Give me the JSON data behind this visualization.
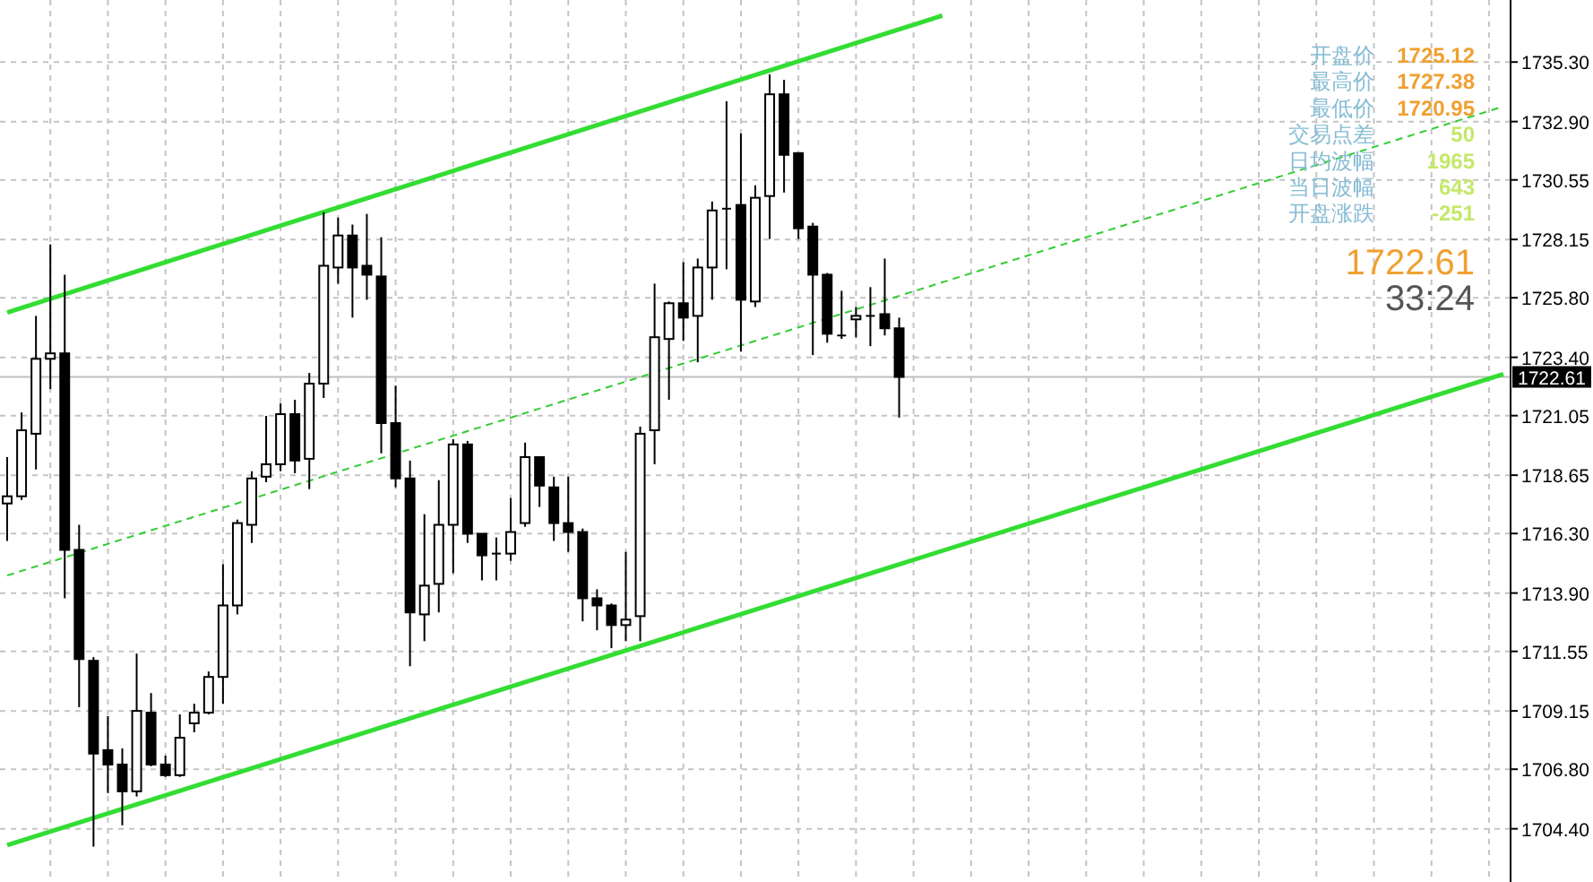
{
  "chart_data": {
    "type": "candlestick",
    "categories": [
      null,
      null,
      null,
      null,
      null,
      null,
      null,
      null,
      null,
      null,
      null,
      null,
      null,
      null,
      null,
      null,
      null,
      null,
      null,
      null,
      null,
      null,
      null,
      null,
      null,
      null,
      null,
      null,
      null,
      null,
      null,
      null,
      null,
      null,
      null,
      null,
      null,
      null,
      null,
      null,
      null,
      null,
      null,
      null,
      null,
      null,
      null,
      null,
      null,
      null,
      null,
      null,
      null,
      null,
      null,
      null,
      null,
      null,
      null,
      null,
      null,
      null,
      null,
      null,
      null,
      null,
      null,
      null,
      null,
      null,
      null,
      null,
      null,
      null,
      null,
      null,
      null,
      null,
      null,
      null,
      null,
      null,
      null,
      null,
      null,
      null,
      null,
      null,
      null,
      null,
      null,
      null,
      null,
      null,
      null,
      null,
      null,
      null,
      null,
      null,
      null,
      null,
      null,
      null,
      null
    ],
    "ohlc": [
      [
        1717.51,
        1719.38,
        1716.0,
        1717.8
      ],
      [
        1717.8,
        1721.18,
        1717.65,
        1720.46
      ],
      [
        1720.32,
        1725.07,
        1718.88,
        1723.34
      ],
      [
        1723.34,
        1727.95,
        1722.12,
        1723.56
      ],
      [
        1723.56,
        1726.73,
        1713.69,
        1715.64
      ],
      [
        1715.64,
        1716.65,
        1709.3,
        1711.24
      ],
      [
        1711.17,
        1711.32,
        1703.68,
        1707.43
      ],
      [
        1707.57,
        1708.94,
        1705.84,
        1706.99
      ],
      [
        1706.99,
        1707.64,
        1704.54,
        1705.91
      ],
      [
        1705.91,
        1711.46,
        1705.7,
        1709.15
      ],
      [
        1709.08,
        1709.87,
        1706.92,
        1706.99
      ],
      [
        1706.99,
        1707.35,
        1706.49,
        1706.56
      ],
      [
        1706.56,
        1709.01,
        1706.49,
        1708.07
      ],
      [
        1708.65,
        1709.44,
        1708.29,
        1709.08
      ],
      [
        1709.08,
        1710.74,
        1709.01,
        1710.52
      ],
      [
        1710.52,
        1715.06,
        1709.44,
        1713.4
      ],
      [
        1713.4,
        1716.86,
        1713.04,
        1716.72
      ],
      [
        1716.65,
        1718.81,
        1715.92,
        1718.52
      ],
      [
        1718.59,
        1721.04,
        1718.37,
        1719.09
      ],
      [
        1719.09,
        1721.54,
        1718.81,
        1721.11
      ],
      [
        1721.11,
        1721.69,
        1718.73,
        1719.24
      ],
      [
        1719.31,
        1722.77,
        1718.09,
        1722.34
      ],
      [
        1722.34,
        1729.25,
        1721.76,
        1727.09
      ],
      [
        1727.02,
        1729.03,
        1726.37,
        1728.31
      ],
      [
        1728.31,
        1728.75,
        1725.0,
        1727.02
      ],
      [
        1727.09,
        1729.18,
        1725.72,
        1726.73
      ],
      [
        1726.66,
        1728.24,
        1719.53,
        1720.75
      ],
      [
        1720.75,
        1722.26,
        1718.16,
        1718.52
      ],
      [
        1718.52,
        1719.24,
        1710.95,
        1713.12
      ],
      [
        1713.04,
        1717.08,
        1711.96,
        1714.2
      ],
      [
        1714.27,
        1718.45,
        1713.12,
        1716.65
      ],
      [
        1716.65,
        1720.1,
        1714.7,
        1719.89
      ],
      [
        1719.89,
        1720.03,
        1715.92,
        1716.29
      ],
      [
        1716.29,
        1716.29,
        1714.41,
        1715.42
      ],
      [
        1715.49,
        1716.14,
        1714.41,
        1715.49
      ],
      [
        1715.49,
        1717.73,
        1715.2,
        1716.36
      ],
      [
        1716.72,
        1719.96,
        1716.57,
        1719.38
      ],
      [
        1719.38,
        1719.38,
        1717.37,
        1718.23
      ],
      [
        1718.16,
        1718.59,
        1716.0,
        1716.72
      ],
      [
        1716.72,
        1718.59,
        1715.56,
        1716.36
      ],
      [
        1716.36,
        1716.5,
        1712.76,
        1713.69
      ],
      [
        1713.69,
        1714.05,
        1712.4,
        1713.4
      ],
      [
        1713.4,
        1713.48,
        1711.68,
        1712.61
      ],
      [
        1712.61,
        1715.56,
        1711.96,
        1712.83
      ],
      [
        1712.97,
        1720.61,
        1711.96,
        1720.32
      ],
      [
        1720.46,
        1726.37,
        1719.09,
        1724.21
      ],
      [
        1724.14,
        1725.65,
        1721.69,
        1725.58
      ],
      [
        1725.58,
        1727.23,
        1724.06,
        1725.0
      ],
      [
        1725.07,
        1727.38,
        1723.2,
        1727.02
      ],
      [
        1727.02,
        1729.68,
        1725.72,
        1729.32
      ],
      [
        1729.39,
        1733.72,
        1726.95,
        1729.39
      ],
      [
        1729.54,
        1732.42,
        1723.63,
        1725.72
      ],
      [
        1725.65,
        1730.33,
        1725.43,
        1729.83
      ],
      [
        1729.9,
        1734.8,
        1728.17,
        1734.0
      ],
      [
        1734.0,
        1734.58,
        1730.04,
        1731.56
      ],
      [
        1731.63,
        1731.63,
        1728.17,
        1728.6
      ],
      [
        1728.67,
        1728.82,
        1723.49,
        1726.73
      ],
      [
        1726.73,
        1726.8,
        1723.99,
        1724.35
      ],
      [
        1724.28,
        1726.08,
        1724.14,
        1724.28
      ],
      [
        1724.93,
        1725.43,
        1724.21,
        1725.07
      ],
      [
        1725.07,
        1726.23,
        1723.85,
        1725.07
      ],
      [
        1725.14,
        1727.38,
        1724.28,
        1724.57
      ],
      [
        1724.57,
        1725.0,
        1720.97,
        1722.61
      ],
      null,
      null,
      null,
      null,
      null,
      null,
      null,
      null,
      null,
      null,
      null,
      null,
      null,
      null,
      null,
      null,
      null,
      null,
      null,
      null,
      null,
      null,
      null,
      null,
      null,
      null,
      null,
      null,
      null,
      null,
      null,
      null,
      null,
      null,
      null,
      null,
      null,
      null,
      null,
      null,
      null,
      null
    ],
    "series": [
      {
        "type": "line",
        "color": "#33dd33",
        "line_style": "solid",
        "values": [
          1725.21,
          null,
          null,
          null,
          null,
          null,
          null,
          null,
          null,
          null,
          null,
          null,
          null,
          null,
          null,
          null,
          null,
          null,
          null,
          null,
          null,
          null,
          null,
          null,
          null,
          null,
          null,
          null,
          null,
          null,
          null,
          null,
          null,
          null,
          null,
          null,
          null,
          null,
          null,
          null,
          null,
          null,
          null,
          null,
          null,
          null,
          null,
          null,
          null,
          null,
          null,
          null,
          null,
          null,
          null,
          null,
          null,
          null,
          null,
          null,
          null,
          null,
          null,
          null,
          null,
          1737.17,
          null,
          null,
          null,
          null,
          null,
          null,
          null,
          null,
          null,
          null,
          null,
          null,
          null,
          null,
          null,
          null,
          null,
          null,
          null,
          null,
          null,
          null,
          null,
          null,
          null,
          null,
          null,
          null,
          null,
          null,
          null,
          null,
          null,
          null,
          null,
          null,
          null,
          null,
          null
        ]
      },
      {
        "type": "line",
        "color": "#33dd33",
        "line_style": "solid",
        "values": [
          1703.74,
          null,
          null,
          null,
          null,
          null,
          null,
          null,
          null,
          null,
          null,
          null,
          null,
          null,
          null,
          null,
          null,
          null,
          null,
          null,
          null,
          null,
          null,
          null,
          null,
          null,
          null,
          null,
          null,
          null,
          null,
          null,
          null,
          null,
          null,
          null,
          null,
          null,
          null,
          null,
          null,
          null,
          null,
          null,
          null,
          null,
          null,
          null,
          null,
          null,
          null,
          null,
          null,
          null,
          null,
          null,
          null,
          null,
          null,
          null,
          null,
          null,
          null,
          null,
          null,
          null,
          null,
          null,
          null,
          null,
          null,
          null,
          null,
          null,
          null,
          null,
          null,
          null,
          null,
          null,
          null,
          null,
          null,
          null,
          null,
          null,
          null,
          null,
          null,
          null,
          null,
          null,
          null,
          null,
          null,
          null,
          null,
          null,
          null,
          null,
          null,
          null,
          null,
          null,
          1722.72
        ]
      },
      {
        "type": "line",
        "color": "#33cc33",
        "line_style": "dashed",
        "values": [
          1714.61,
          null,
          null,
          null,
          null,
          null,
          null,
          null,
          null,
          null,
          null,
          null,
          null,
          null,
          null,
          null,
          null,
          null,
          null,
          null,
          null,
          null,
          null,
          null,
          null,
          null,
          null,
          null,
          null,
          null,
          null,
          null,
          null,
          null,
          null,
          null,
          null,
          null,
          null,
          null,
          null,
          null,
          null,
          null,
          null,
          null,
          null,
          null,
          null,
          null,
          null,
          null,
          null,
          null,
          null,
          null,
          null,
          null,
          null,
          null,
          null,
          null,
          null,
          null,
          null,
          null,
          null,
          null,
          null,
          null,
          null,
          null,
          null,
          null,
          null,
          null,
          null,
          null,
          null,
          null,
          null,
          null,
          null,
          null,
          null,
          null,
          null,
          null,
          null,
          null,
          null,
          null,
          null,
          null,
          null,
          null,
          null,
          null,
          null,
          null,
          null,
          null,
          null,
          null,
          1733.51
        ]
      }
    ],
    "ylim": [
      1702.4,
      1737.8
    ],
    "yticks": [
      {
        "value": 1735.3,
        "label": "1735.30"
      },
      {
        "value": 1732.9,
        "label": "1732.90"
      },
      {
        "value": 1730.55,
        "label": "1730.55"
      },
      {
        "value": 1728.15,
        "label": "1728.15"
      },
      {
        "value": 1725.8,
        "label": "1725.80"
      },
      {
        "value": 1723.4,
        "label": "1723.40"
      },
      {
        "value": 1721.05,
        "label": "1721.05"
      },
      {
        "value": 1718.65,
        "label": "1718.65"
      },
      {
        "value": 1716.3,
        "label": "1716.30"
      },
      {
        "value": 1713.9,
        "label": "1713.90"
      },
      {
        "value": 1711.55,
        "label": "1711.55"
      },
      {
        "value": 1709.15,
        "label": "1709.15"
      },
      {
        "value": 1706.8,
        "label": "1706.80"
      },
      {
        "value": 1704.4,
        "label": "1704.40"
      }
    ],
    "tick_labels": "y",
    "grid": true,
    "ref_lines": [
      {
        "axis": "y",
        "value": 1722.61,
        "label": "1722.61",
        "color": "#c0c0c0"
      }
    ],
    "annotations": [
      "开盘价",
      "1725.12",
      "最高价",
      "1727.38",
      "最低价",
      "1720.95",
      "交易点差",
      "50",
      "日均波幅",
      "1965",
      "当日波幅",
      "643",
      "开盘涨跌",
      "-251",
      "1722.61",
      "33:24"
    ]
  }
}
